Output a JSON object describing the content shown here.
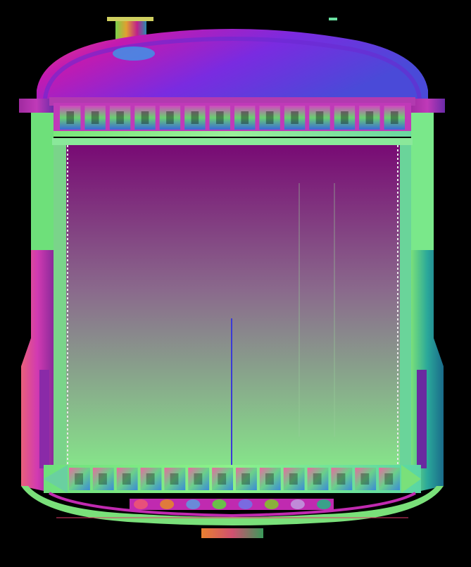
{
  "image": {
    "subject": "pressure-vessel-cross-section",
    "background": "#000000"
  },
  "palette": {
    "magenta": "#b21aa8",
    "purple": "#7a1590",
    "violet": "#6a3bd8",
    "blue": "#3d47e0",
    "green": "#79e38c",
    "lime": "#8cf27a",
    "mint": "#66d9a6",
    "orange": "#e07a3c",
    "pink": "#e8507a",
    "teal": "#1f8c8a",
    "interior_top": "#7a0c76",
    "interior_bottom": "#84e38a",
    "thermowell": "#3a3ad8"
  },
  "vessel": {
    "tray_slot_count": 14,
    "bottom_tray_slot_count": 14,
    "bottom_port_count": 8
  }
}
